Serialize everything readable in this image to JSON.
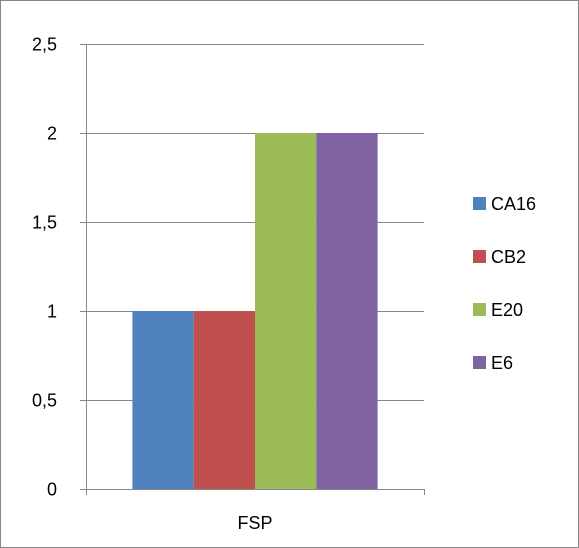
{
  "chart_data": {
    "type": "bar",
    "categories": [
      "FSP"
    ],
    "series": [
      {
        "name": "CA16",
        "values": [
          1
        ],
        "color": "#4f81bd"
      },
      {
        "name": "CB2",
        "values": [
          1
        ],
        "color": "#c0504d"
      },
      {
        "name": "E20",
        "values": [
          2
        ],
        "color": "#9bbb59"
      },
      {
        "name": "E6",
        "values": [
          2
        ],
        "color": "#8064a2"
      }
    ],
    "title": "",
    "xlabel": "",
    "ylabel": "",
    "ylim": [
      0,
      2.5
    ],
    "yticks": [
      0,
      0.5,
      1,
      1.5,
      2,
      2.5
    ],
    "ytick_labels": [
      "0",
      "0,5",
      "1",
      "1,5",
      "2",
      "2,5"
    ],
    "grid": true,
    "legend_position": "right"
  }
}
